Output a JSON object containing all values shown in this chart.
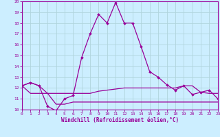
{
  "xlabel": "Windchill (Refroidissement éolien,°C)",
  "bg_color": "#cceeff",
  "grid_color": "#b0d4dd",
  "line_color": "#990099",
  "ylim": [
    10,
    20
  ],
  "xlim": [
    0,
    23
  ],
  "yticks": [
    10,
    11,
    12,
    13,
    14,
    15,
    16,
    17,
    18,
    19,
    20
  ],
  "xticks": [
    0,
    1,
    2,
    3,
    4,
    5,
    6,
    7,
    8,
    9,
    10,
    11,
    12,
    13,
    14,
    15,
    16,
    17,
    18,
    19,
    20,
    21,
    22,
    23
  ],
  "hours": [
    0,
    1,
    2,
    3,
    4,
    5,
    6,
    7,
    8,
    9,
    10,
    11,
    12,
    13,
    14,
    15,
    16,
    17,
    18,
    19,
    20,
    21,
    22,
    23
  ],
  "temp_main": [
    12.2,
    12.5,
    12.2,
    10.3,
    9.9,
    11.0,
    11.3,
    14.8,
    17.0,
    18.8,
    18.0,
    19.9,
    18.0,
    18.0,
    15.8,
    13.5,
    13.0,
    12.3,
    11.8,
    12.2,
    11.4,
    11.6,
    11.8,
    11.0
  ],
  "temp_min": [
    12.2,
    11.5,
    11.5,
    11.5,
    10.5,
    10.5,
    10.7,
    10.7,
    10.7,
    10.7,
    10.7,
    10.7,
    10.7,
    10.7,
    10.7,
    10.7,
    10.7,
    10.7,
    10.7,
    10.7,
    10.7,
    10.7,
    10.7,
    10.7
  ],
  "temp_max": [
    12.2,
    12.5,
    12.2,
    11.5,
    11.5,
    11.5,
    11.5,
    11.5,
    11.5,
    11.7,
    11.8,
    11.9,
    12.0,
    12.0,
    12.0,
    12.0,
    12.0,
    12.0,
    12.0,
    12.2,
    12.2,
    11.6,
    11.5,
    11.5
  ]
}
